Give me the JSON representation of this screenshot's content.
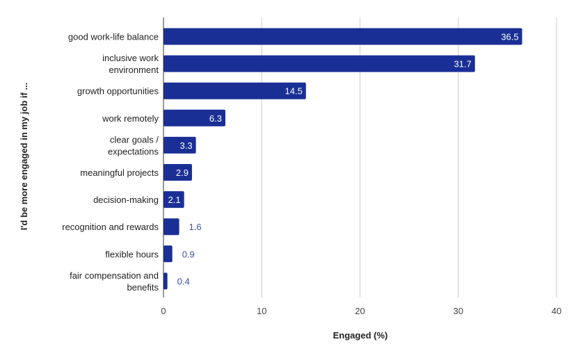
{
  "chart_data": {
    "type": "bar",
    "orientation": "horizontal",
    "title": "",
    "xlabel": "Engaged (%)",
    "ylabel": "I'd be more engaged in my job if ...",
    "xlim": [
      0,
      40
    ],
    "xticks": [
      0,
      10,
      20,
      30,
      40
    ],
    "grid": true,
    "categories": [
      [
        "good work-life balance"
      ],
      [
        "inclusive work",
        "environment"
      ],
      [
        "growth opportunities"
      ],
      [
        "work remotely"
      ],
      [
        "clear goals /",
        "expectations"
      ],
      [
        "meaningful projects"
      ],
      [
        "decision-making"
      ],
      [
        "recognition and rewards"
      ],
      [
        "flexible hours"
      ],
      [
        "fair compensation and",
        "benefits"
      ]
    ],
    "values": [
      36.5,
      31.7,
      14.5,
      6.3,
      3.3,
      2.9,
      2.1,
      1.6,
      0.9,
      0.4
    ],
    "colors": {
      "bar": "#1a2f96",
      "label_inside": "#ffffff",
      "label_outside": "#3a4fa8",
      "grid": "#cccccc",
      "axis": "#333333"
    }
  }
}
